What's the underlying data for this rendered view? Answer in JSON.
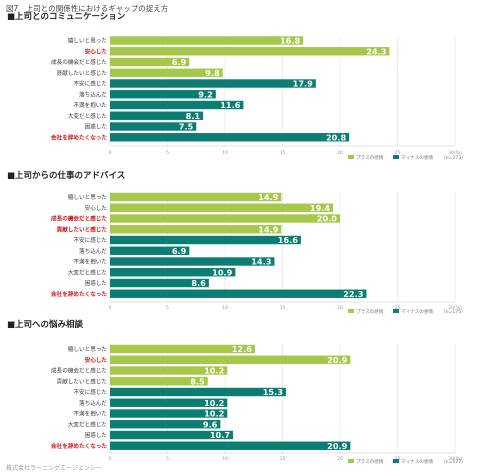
{
  "figure_title": "図7　上司との関係性におけるギャップの捉え方",
  "footer": "株式会社ラーニングエージェンシー",
  "colors": {
    "positive": "#a5c84a",
    "negative": "#0b7d72",
    "highlight_text": "#d0121b"
  },
  "chart_data": [
    {
      "type": "bar",
      "title": "■上司とのコミュニケーション",
      "categories": [
        "嬉しいと思った",
        "安心した",
        "成長の機会だと感じた",
        "貢献したいと感じた",
        "不安に感じた",
        "落ち込んだ",
        "不満を抱いた",
        "大変だと感じた",
        "困惑した",
        "会社を辞めたくなった"
      ],
      "values": [
        16.8,
        24.3,
        6.9,
        9.8,
        17.9,
        9.2,
        11.6,
        8.1,
        7.5,
        20.8
      ],
      "value_labels": [
        "16.8",
        "24.3",
        "6.9",
        "9.8",
        "17.9",
        "9.2",
        "11.6",
        "8.1",
        "7.5",
        "20.8"
      ],
      "polarity": [
        "positive",
        "positive",
        "positive",
        "positive",
        "negative",
        "negative",
        "negative",
        "negative",
        "negative",
        "negative"
      ],
      "highlight": [
        false,
        true,
        false,
        false,
        false,
        false,
        false,
        false,
        false,
        true
      ],
      "xlim": [
        0,
        30
      ],
      "ticks": [
        0,
        5,
        10,
        15,
        20,
        25,
        30
      ],
      "tick_labels": [
        "0",
        "5",
        "10",
        "15",
        "20",
        "25",
        "30(%)"
      ],
      "legend": {
        "positive": "プラスの感情",
        "negative": "マイナスの感情",
        "n": "（n=273）"
      }
    },
    {
      "type": "bar",
      "title": "■上司からの仕事のアドバイス",
      "categories": [
        "嬉しいと思った",
        "安心した",
        "成長の機会だと感じた",
        "貢献したいと感じた",
        "不安に感じた",
        "落ち込んだ",
        "不満を抱いた",
        "大変だと感じた",
        "困惑した",
        "会社を辞めたくなった"
      ],
      "values": [
        14.9,
        19.4,
        20.0,
        14.9,
        16.6,
        6.9,
        14.3,
        10.9,
        8.6,
        22.3
      ],
      "value_labels": [
        "14.9",
        "19.4",
        "20.0",
        "14.9",
        "16.6",
        "6.9",
        "14.3",
        "10.9",
        "8.6",
        "22.3"
      ],
      "polarity": [
        "positive",
        "positive",
        "positive",
        "positive",
        "negative",
        "negative",
        "negative",
        "negative",
        "negative",
        "negative"
      ],
      "highlight": [
        false,
        false,
        true,
        true,
        false,
        false,
        false,
        false,
        false,
        true
      ],
      "xlim": [
        0,
        30
      ],
      "ticks": [
        0,
        5,
        10,
        15,
        20,
        25,
        30
      ],
      "tick_labels": [
        "0",
        "5",
        "10",
        "15",
        "20",
        "25",
        "30(%)"
      ],
      "legend": {
        "positive": "プラスの感情",
        "negative": "マイナスの感情",
        "n": "（n=175）"
      }
    },
    {
      "type": "bar",
      "title": "■上司への悩み相談",
      "categories": [
        "嬉しいと思った",
        "安心した",
        "成長の機会だと感じた",
        "貢献したいと感じた",
        "不安に感じた",
        "落ち込んだ",
        "不満を抱いた",
        "大変だと感じた",
        "困惑した",
        "会社を辞めたくなった"
      ],
      "values": [
        12.6,
        20.9,
        10.2,
        8.5,
        15.3,
        10.2,
        10.2,
        9.6,
        10.7,
        20.9
      ],
      "value_labels": [
        "12.6",
        "20.9",
        "10.2",
        "8.5",
        "15.3",
        "10.2",
        "10.2",
        "9.6",
        "10.7",
        "20.9"
      ],
      "polarity": [
        "positive",
        "positive",
        "positive",
        "positive",
        "negative",
        "negative",
        "negative",
        "negative",
        "negative",
        "negative"
      ],
      "highlight": [
        false,
        true,
        false,
        false,
        false,
        false,
        false,
        false,
        false,
        true
      ],
      "xlim": [
        0,
        30
      ],
      "ticks": [
        0,
        5,
        10,
        15,
        20,
        25,
        30
      ],
      "tick_labels": [
        "0",
        "5",
        "10",
        "15",
        "20",
        "25",
        "30(%)"
      ],
      "legend": {
        "positive": "プラスの感情",
        "negative": "マイナスの感情",
        "n": "（n=177）"
      }
    }
  ]
}
